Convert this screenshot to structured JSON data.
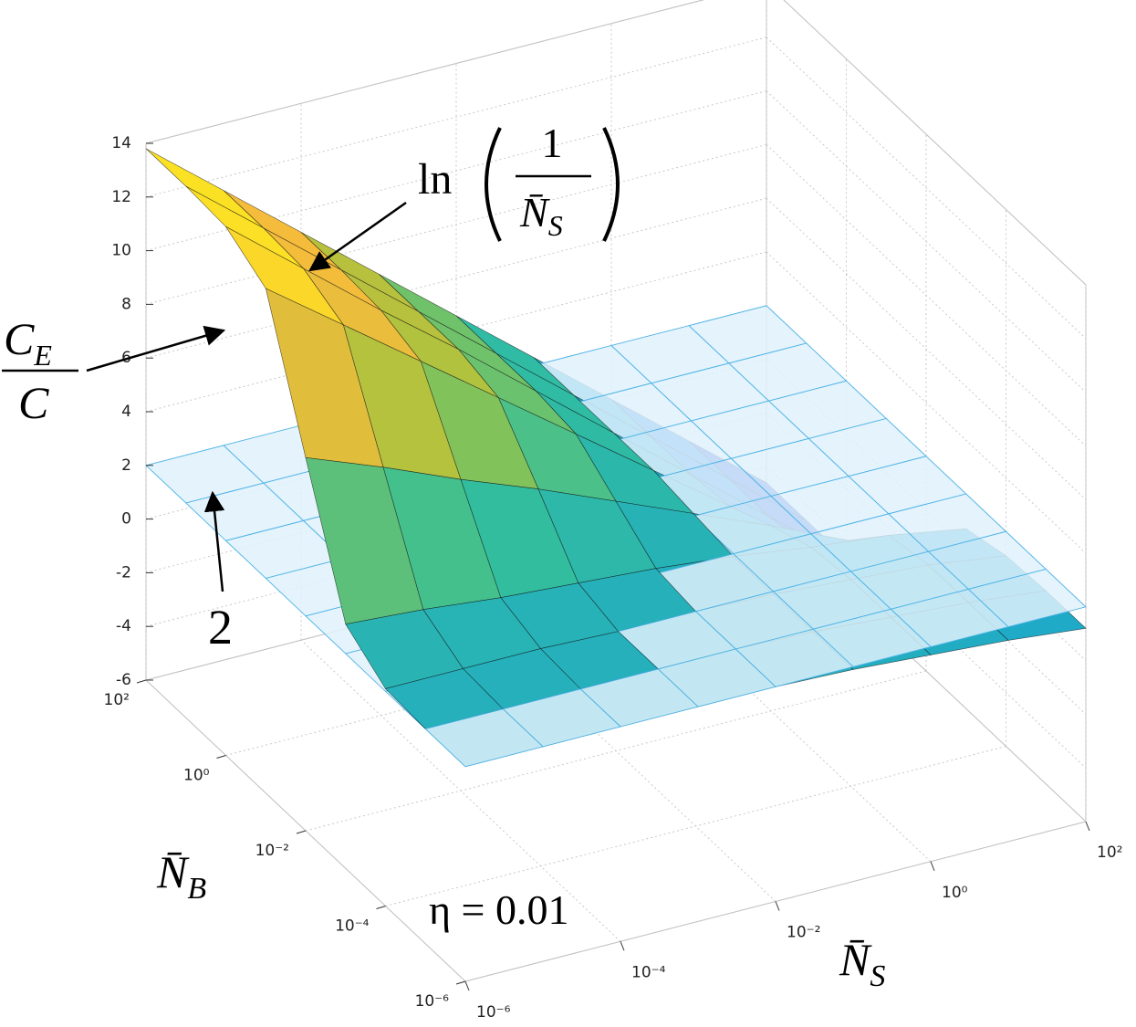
{
  "chart_data": {
    "type": "surface",
    "x": [
      1e-06,
      1e-05,
      0.0001,
      0.001,
      0.01,
      0.1,
      1,
      10,
      100
    ],
    "y": [
      1e-06,
      1e-05,
      0.0001,
      0.001,
      0.01,
      0.1,
      1,
      10,
      100
    ],
    "xscale": "log",
    "yscale": "log",
    "xlim": [
      1e-06,
      100
    ],
    "ylim": [
      1e-06,
      100
    ],
    "zlim": [
      -6,
      14
    ],
    "xticks": [
      {
        "value": 1e-06,
        "label": "10⁻⁶"
      },
      {
        "value": 0.0001,
        "label": "10⁻⁴"
      },
      {
        "value": 0.01,
        "label": "10⁻²"
      },
      {
        "value": 1,
        "label": "10⁰"
      },
      {
        "value": 100,
        "label": "10²"
      }
    ],
    "yticks": [
      {
        "value": 1e-06,
        "label": "10⁻⁶"
      },
      {
        "value": 0.0001,
        "label": "10⁻⁴"
      },
      {
        "value": 0.01,
        "label": "10⁻²"
      },
      {
        "value": 1,
        "label": "10⁰"
      },
      {
        "value": 100,
        "label": "10²"
      }
    ],
    "zticks": [
      -6,
      -4,
      -2,
      0,
      2,
      4,
      6,
      8,
      10,
      12,
      14
    ],
    "grid": true,
    "xlabel": {
      "text": "N̄",
      "subscript": "S"
    },
    "ylabel": {
      "text": "N̄",
      "subscript": "B"
    },
    "series": [
      {
        "colormap": "parula",
        "values": [
          [
            2,
            2,
            2,
            2,
            2,
            1.9,
            1.7,
            1.5,
            1.2
          ],
          [
            2,
            2,
            2,
            2,
            2,
            1.9,
            1.7,
            1.5,
            1.2
          ],
          [
            2.1,
            2.1,
            2.1,
            2,
            2,
            1.9,
            1.7,
            1.5,
            1.1
          ],
          [
            3.1,
            2.9,
            2.6,
            2.4,
            2.2,
            1.9,
            1.5,
            1.2,
            0.7
          ],
          [
            7.9,
            6.8,
            5.6,
            4.5,
            3.3,
            2.1,
            0.9,
            -0.4,
            -1.7
          ],
          [
            12.8,
            10.7,
            8.6,
            6.5,
            4.4,
            2.3,
            0.2,
            -2,
            -4.1
          ],
          [
            13.7,
            11.4,
            9.1,
            6.9,
            4.6,
            2.3,
            0,
            -2.3,
            -4.6
          ],
          [
            13.8,
            11.5,
            9.2,
            6.9,
            4.6,
            2.3,
            0,
            -2.3,
            -4.6
          ],
          [
            13.8,
            11.5,
            9.2,
            6.9,
            4.6,
            2.3,
            0,
            -2.3,
            -4.6
          ]
        ]
      },
      {
        "color": "#4db3e6",
        "values": [
          [
            2,
            2,
            2,
            2,
            2,
            2,
            2,
            2,
            2
          ],
          [
            2,
            2,
            2,
            2,
            2,
            2,
            2,
            2,
            2
          ],
          [
            2,
            2,
            2,
            2,
            2,
            2,
            2,
            2,
            2
          ],
          [
            2,
            2,
            2,
            2,
            2,
            2,
            2,
            2,
            2
          ],
          [
            2,
            2,
            2,
            2,
            2,
            2,
            2,
            2,
            2
          ],
          [
            2,
            2,
            2,
            2,
            2,
            2,
            2,
            2,
            2
          ],
          [
            2,
            2,
            2,
            2,
            2,
            2,
            2,
            2,
            2
          ],
          [
            2,
            2,
            2,
            2,
            2,
            2,
            2,
            2,
            2
          ],
          [
            2,
            2,
            2,
            2,
            2,
            2,
            2,
            2,
            2
          ]
        ]
      }
    ],
    "annotations": [
      {
        "prefix": "ln",
        "numerator": "1",
        "denominator": {
          "text": "N̄",
          "subscript": "S"
        }
      },
      {
        "numerator": {
          "text": "C",
          "subscript": "E"
        },
        "denominator": "C"
      },
      {
        "text": "2"
      },
      {
        "text": "η = 0.01"
      }
    ]
  }
}
